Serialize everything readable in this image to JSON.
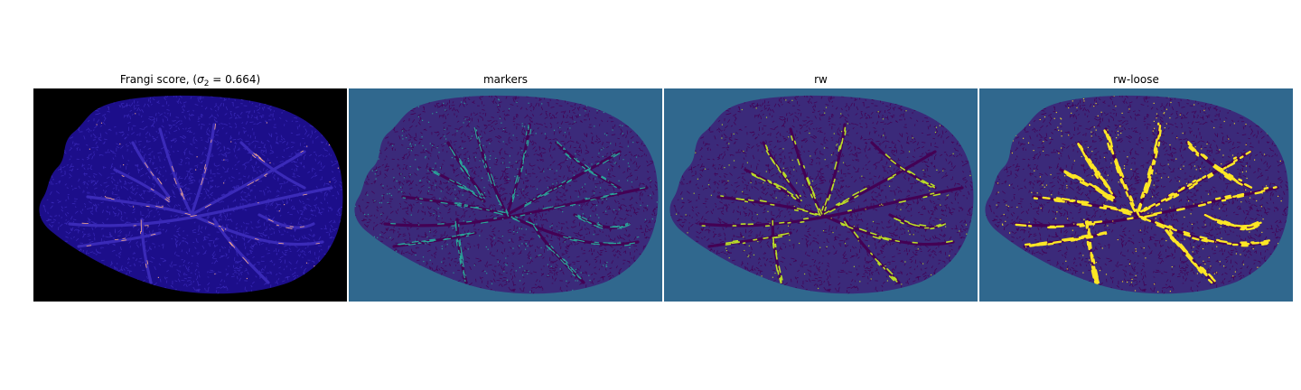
{
  "figure": {
    "panels": [
      {
        "id": "frangi",
        "title": {
          "prefix": "Frangi score, (",
          "sigma": "σ",
          "subscript": "2",
          "suffix": " = 0.664)"
        },
        "colormap": "magma",
        "background_color": "#000000",
        "region_color": "#1c0e8a",
        "vessel_color": "#3a2ab8",
        "highlight_color": "#f4a78c"
      },
      {
        "id": "markers",
        "title": "markers",
        "colormap": "viridis",
        "background_color": "#30688e",
        "region_color": "#3b2a7a",
        "vessel_color": "#440154",
        "highlight_color": "#2aa59a"
      },
      {
        "id": "rw",
        "title": "rw",
        "colormap": "viridis",
        "background_color": "#30688e",
        "region_color": "#3b2a7a",
        "vessel_color": "#440154",
        "highlight_color": "#b9de28"
      },
      {
        "id": "rw-loose",
        "title": "rw-loose",
        "colormap": "viridis",
        "background_color": "#30688e",
        "region_color": "#3b2a7a",
        "vessel_color": "#440154",
        "highlight_color": "#fde725"
      }
    ]
  }
}
